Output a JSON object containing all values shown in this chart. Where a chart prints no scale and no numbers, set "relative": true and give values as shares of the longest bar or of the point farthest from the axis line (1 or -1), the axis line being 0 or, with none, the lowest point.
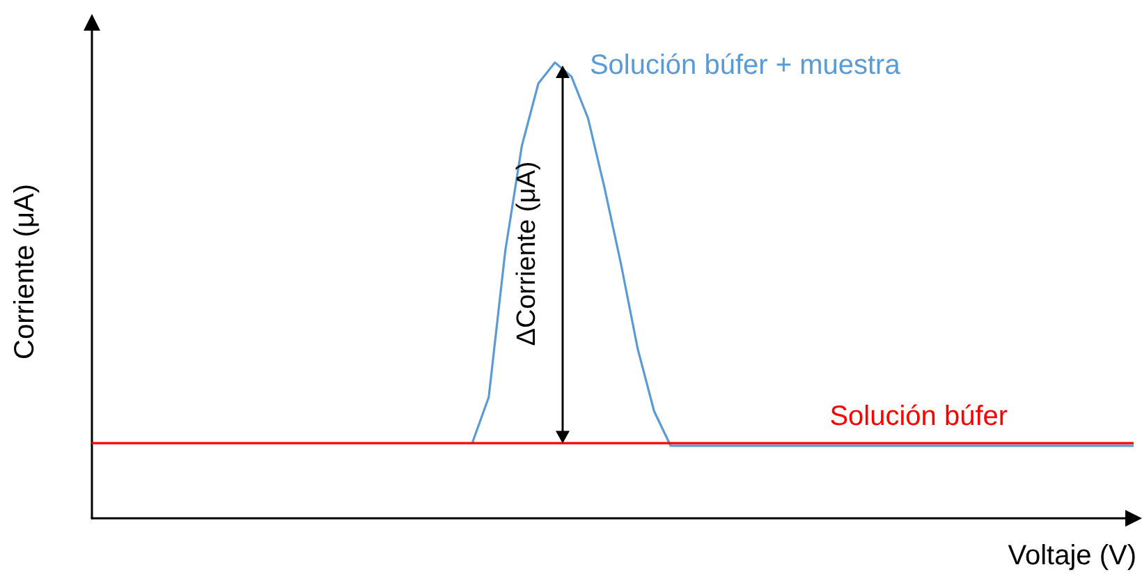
{
  "chart_data": {
    "type": "line",
    "relative": true,
    "xlabel": "Voltaje (V)",
    "ylabel": "Corriente (μA)",
    "categories": [
      null,
      null,
      null,
      null,
      null,
      null,
      null,
      null,
      null,
      null,
      null,
      null,
      null,
      null,
      null,
      null,
      null,
      null,
      null,
      null,
      null,
      null,
      null,
      null,
      null,
      null,
      null,
      null,
      null,
      null,
      null,
      null,
      null,
      null,
      null,
      null,
      null,
      null,
      null,
      null,
      null,
      null,
      null,
      null,
      null,
      null,
      null,
      null,
      null,
      null,
      null,
      null,
      null,
      null,
      null,
      null,
      null,
      null,
      null,
      null,
      null,
      null,
      null,
      null
    ],
    "series": [
      {
        "name": "Solución búfer + muestra",
        "color": "#5b9bd5",
        "values": [
          null,
          null,
          null,
          null,
          null,
          null,
          null,
          null,
          null,
          null,
          null,
          null,
          null,
          null,
          null,
          null,
          null,
          null,
          null,
          null,
          null,
          null,
          null,
          0.165,
          0.266,
          0.587,
          0.817,
          0.954,
          1,
          0.969,
          0.878,
          0.725,
          0.557,
          0.373,
          0.235,
          0.159,
          0.159,
          0.159,
          0.159,
          0.159,
          0.159,
          0.159,
          0.159,
          0.159,
          0.159,
          0.159,
          0.159,
          0.159,
          0.159,
          0.159,
          0.159,
          0.159,
          0.159,
          0.159,
          0.159,
          0.159,
          0.159,
          0.159,
          0.159,
          0.159,
          0.159,
          0.159,
          0.159,
          0.159
        ]
      },
      {
        "name": "Solución búfer",
        "color": "#ff0000",
        "values": [
          0.165,
          0.165,
          0.165,
          0.165,
          0.165,
          0.165,
          0.165,
          0.165,
          0.165,
          0.165,
          0.165,
          0.165,
          0.165,
          0.165,
          0.165,
          0.165,
          0.165,
          0.165,
          0.165,
          0.165,
          0.165,
          0.165,
          0.165,
          0.165,
          0.165,
          0.165,
          0.165,
          0.165,
          0.165,
          0.165,
          0.165,
          0.165,
          0.165,
          0.165,
          0.165,
          0.165,
          0.165,
          0.165,
          0.165,
          0.165,
          0.165,
          0.165,
          0.165,
          0.165,
          0.165,
          0.165,
          0.165,
          0.165,
          0.165,
          0.165,
          0.165,
          0.165,
          0.165,
          0.165,
          0.165,
          0.165,
          0.165,
          0.165,
          0.165,
          0.165,
          0.165,
          0.165,
          0.165,
          0.165
        ]
      }
    ],
    "annotations": [
      "ΔCorriente (μA)"
    ]
  }
}
